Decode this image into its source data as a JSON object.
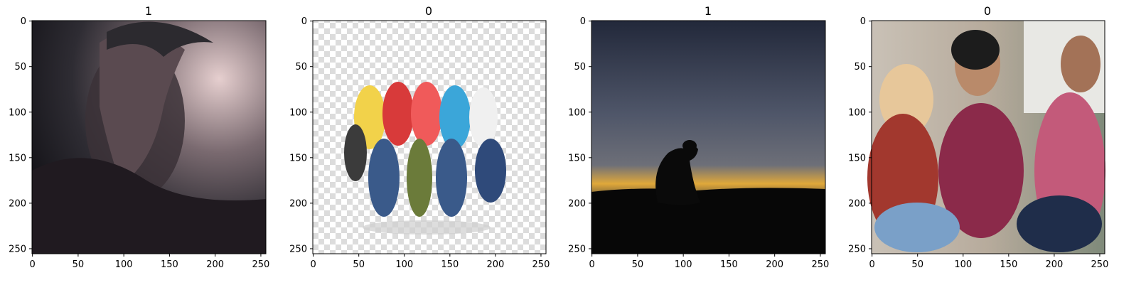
{
  "figure": {
    "panels": [
      {
        "title": "1",
        "image_description": "dark moody portrait of a man with messy hair, head bowed, dripping paint",
        "image_palette": [
          "#2a2a2e",
          "#4a3d45",
          "#d9c2c4",
          "#1c1a1f"
        ]
      },
      {
        "title": "0",
        "image_description": "group of young people jumping and cheering on a transparent checkerboard background",
        "image_palette": [
          "#ffffff",
          "#d9d9d9",
          "#3a5a8a",
          "#d83a3a",
          "#f2d24a"
        ]
      },
      {
        "title": "1",
        "image_description": "silhouette of a person sitting alone at dusk under a cloudy sky",
        "image_palette": [
          "#2f3345",
          "#5b6275",
          "#e0a83a",
          "#0c0c0c"
        ]
      },
      {
        "title": "0",
        "image_description": "three smiling friends sitting together, one wearing a black turban",
        "image_palette": [
          "#c8b8a4",
          "#b33a3a",
          "#2b2b2b",
          "#8b2a4a"
        ]
      }
    ]
  },
  "chart_data": [
    {
      "type": "image",
      "title": "1",
      "x_ticks": [
        "0",
        "50",
        "100",
        "150",
        "200",
        "250"
      ],
      "y_ticks": [
        "0",
        "50",
        "100",
        "150",
        "200",
        "250"
      ],
      "xlim": [
        -0.5,
        255.5
      ],
      "ylim": [
        255.5,
        -0.5
      ],
      "tick_values": [
        0,
        50,
        100,
        150,
        200,
        250
      ]
    },
    {
      "type": "image",
      "title": "0",
      "x_ticks": [
        "0",
        "50",
        "100",
        "150",
        "200",
        "250"
      ],
      "y_ticks": [
        "0",
        "50",
        "100",
        "150",
        "200",
        "250"
      ],
      "xlim": [
        -0.5,
        255.5
      ],
      "ylim": [
        255.5,
        -0.5
      ],
      "tick_values": [
        0,
        50,
        100,
        150,
        200,
        250
      ]
    },
    {
      "type": "image",
      "title": "1",
      "x_ticks": [
        "0",
        "50",
        "100",
        "150",
        "200",
        "250"
      ],
      "y_ticks": [
        "0",
        "50",
        "100",
        "150",
        "200",
        "250"
      ],
      "xlim": [
        -0.5,
        255.5
      ],
      "ylim": [
        255.5,
        -0.5
      ],
      "tick_values": [
        0,
        50,
        100,
        150,
        200,
        250
      ]
    },
    {
      "type": "image",
      "title": "0",
      "x_ticks": [
        "0",
        "50",
        "100",
        "150",
        "200",
        "250"
      ],
      "y_ticks": [
        "0",
        "50",
        "100",
        "150",
        "200",
        "250"
      ],
      "xlim": [
        -0.5,
        255.5
      ],
      "ylim": [
        255.5,
        -0.5
      ],
      "tick_values": [
        0,
        50,
        100,
        150,
        200,
        250
      ]
    }
  ]
}
